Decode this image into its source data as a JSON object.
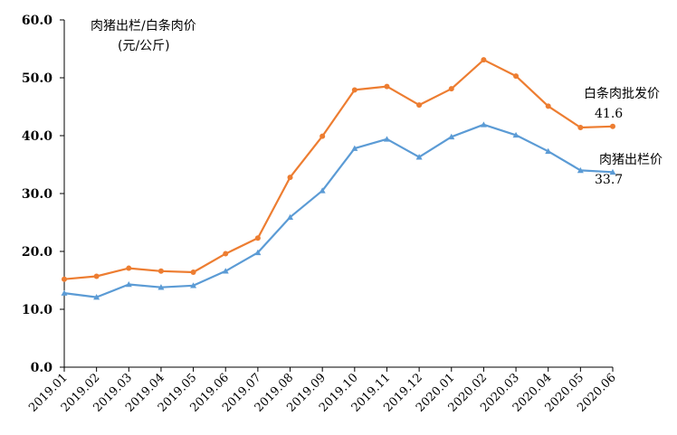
{
  "chart_data": {
    "type": "line",
    "title_lines": [
      "肉猪出栏/白条肉价",
      "(元/公斤)"
    ],
    "xlabel": "",
    "ylabel": "",
    "categories": [
      "2019.01",
      "2019.02",
      "2019.03",
      "2019.04",
      "2019.05",
      "2019.06",
      "2019.07",
      "2019.08",
      "2019.09",
      "2019.10",
      "2019.11",
      "2019.12",
      "2020.01",
      "2020.02",
      "2020.03",
      "2020.04",
      "2020.05",
      "2020.06"
    ],
    "ylim": [
      0,
      60
    ],
    "yticks": [
      "0.0",
      "10.0",
      "20.0",
      "30.0",
      "40.0",
      "50.0",
      "60.0"
    ],
    "grid": false,
    "series": [
      {
        "name": "白条肉批发价",
        "color": "#ED7D31",
        "marker": "circle",
        "end_label": "41.6",
        "values": [
          15.2,
          15.7,
          17.1,
          16.6,
          16.4,
          19.6,
          22.3,
          32.8,
          39.9,
          47.9,
          48.5,
          45.3,
          48.1,
          53.1,
          50.3,
          45.1,
          41.4,
          41.6
        ]
      },
      {
        "name": "肉猪出栏价",
        "color": "#5B9BD5",
        "marker": "triangle",
        "end_label": "33.7",
        "values": [
          12.8,
          12.1,
          14.3,
          13.8,
          14.1,
          16.6,
          19.8,
          25.9,
          30.5,
          37.8,
          39.4,
          36.3,
          39.8,
          41.9,
          40.1,
          37.3,
          34.0,
          33.7
        ]
      }
    ]
  }
}
